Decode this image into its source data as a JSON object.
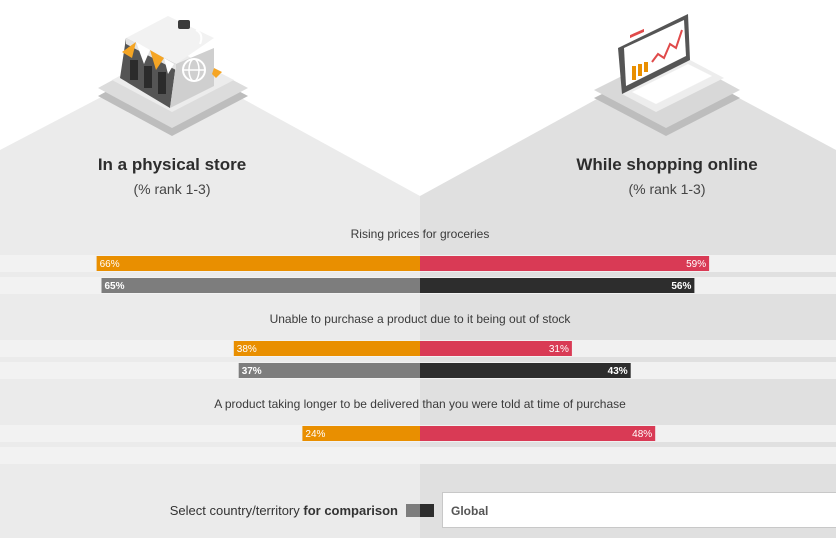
{
  "left_panel": {
    "title": "In a physical store",
    "subtitle": "(% rank 1-3)"
  },
  "right_panel": {
    "title": "While shopping online",
    "subtitle": "(% rank 1-3)"
  },
  "comparison": {
    "label_prefix": "Select country/territory ",
    "label_bold": "for comparison",
    "selected_value": "Global"
  },
  "colors": {
    "store_primary": "#e98f00",
    "store_comparison": "#7d7d7d",
    "online_primary": "#d93a55",
    "online_comparison": "#2d2d2d"
  },
  "icons": [
    "storefront-icon",
    "laptop-chart-icon"
  ],
  "chart_data": {
    "type": "bar",
    "orientation": "horizontal-diverging",
    "value_unit": "%",
    "categories": [
      "Rising prices for groceries",
      "Unable to purchase a product due to it being out of stock",
      "A product taking longer to be delivered than you were told at time of purchase"
    ],
    "series": [
      {
        "name": "In a physical store",
        "role": "store",
        "values": [
          66,
          38,
          24
        ]
      },
      {
        "name": "While shopping online",
        "role": "online",
        "values": [
          59,
          31,
          48
        ]
      }
    ],
    "comparison_series": [
      {
        "role": "store",
        "values": [
          65,
          37,
          null
        ]
      },
      {
        "role": "online",
        "values": [
          56,
          43,
          null
        ]
      }
    ],
    "xlim": [
      0,
      100
    ]
  }
}
